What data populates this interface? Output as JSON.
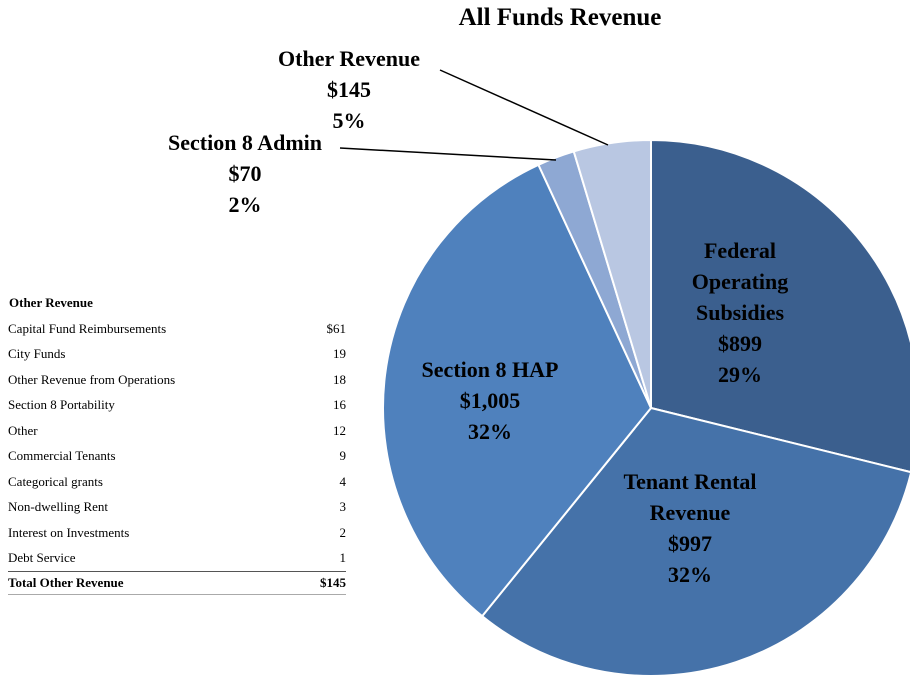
{
  "chart_data": {
    "type": "pie",
    "title": "All Funds Revenue",
    "categories": [
      "Federal Operating Subsidies",
      "Tenant Rental Revenue",
      "Section 8 HAP",
      "Section 8 Admin",
      "Other Revenue"
    ],
    "values": [
      899,
      997,
      1005,
      70,
      145
    ],
    "value_labels": [
      "$899",
      "$997",
      "$1,005",
      "$70",
      "$145"
    ],
    "percents": [
      29,
      32,
      32,
      2,
      5
    ],
    "percent_labels": [
      "29%",
      "32%",
      "32%",
      "2%",
      "5%"
    ],
    "colors": [
      "#3b5f8e",
      "#4572a9",
      "#4f81bd",
      "#8ea8d3",
      "#b9c7e2"
    ]
  },
  "table": {
    "title": "Other Revenue",
    "rows": [
      [
        "Capital Fund Reimbursements",
        "$61"
      ],
      [
        "City Funds",
        19
      ],
      [
        "Other Revenue from Operations",
        18
      ],
      [
        "Section 8 Portability",
        16
      ],
      [
        "Other",
        12
      ],
      [
        "Commercial Tenants",
        9
      ],
      [
        "Categorical grants",
        4
      ],
      [
        "Non-dwelling Rent",
        3
      ],
      [
        "Interest on Investments",
        2
      ],
      [
        "Debt Service",
        1
      ]
    ],
    "total": [
      "Total Other Revenue",
      "$145"
    ]
  }
}
